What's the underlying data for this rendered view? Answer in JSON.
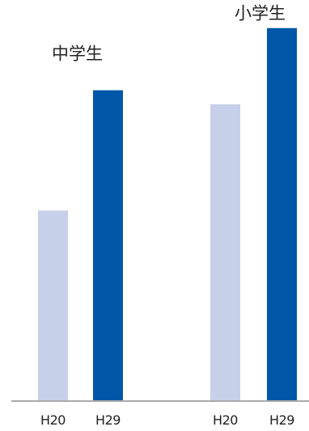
{
  "chart_data": {
    "type": "bar",
    "title": "",
    "xlabel": "",
    "ylabel": "",
    "grid": false,
    "legend": "none",
    "ylim": [
      0,
      100
    ],
    "groups": [
      {
        "label": "中学生",
        "categories": [
          "H20",
          "H29"
        ],
        "values": [
          47.5,
          77.5
        ]
      },
      {
        "label": "小学生",
        "categories": [
          "H20",
          "H29"
        ],
        "values": [
          74,
          93
        ]
      }
    ],
    "colors": {
      "H20": "#c7d0e9",
      "H29": "#0057a8",
      "axis": "#aaaaaa"
    }
  }
}
